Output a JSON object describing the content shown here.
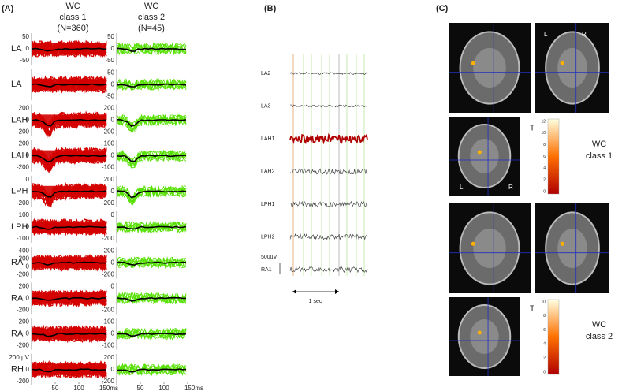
{
  "panel_a": {
    "label": "(A)",
    "columns": [
      [
        "WC",
        "class 1",
        "(N=360)"
      ],
      [
        "WC",
        "class 2",
        "(N=45)"
      ]
    ],
    "rows": [
      {
        "label": "LA",
        "ticks": [
          [
            "50",
            "0",
            "-50"
          ],
          [
            "50",
            "0",
            "-50"
          ]
        ]
      },
      {
        "label": "LA",
        "ticks": [
          [],
          [
            "50",
            "0",
            "-50"
          ]
        ]
      },
      {
        "label": "LAH",
        "ticks": [
          [
            "200",
            "0",
            "-200"
          ],
          [
            "200",
            "0",
            "-200"
          ]
        ]
      },
      {
        "label": "LAH",
        "ticks": [
          [
            "200",
            "0",
            "-200"
          ],
          [
            "100",
            "0",
            "-100"
          ]
        ]
      },
      {
        "label": "LPH",
        "ticks": [
          [
            "0",
            "-200"
          ],
          [
            "200",
            "0",
            "-200"
          ]
        ]
      },
      {
        "label": "LPH",
        "ticks": [
          [
            "100",
            "0",
            "-100"
          ],
          [
            "0",
            "-200"
          ]
        ]
      },
      {
        "label": "RA",
        "ticks": [
          [
            "400",
            "200",
            "0",
            "-200"
          ],
          [
            "200",
            "0",
            "-200"
          ]
        ]
      },
      {
        "label": "RA",
        "ticks": [
          [
            "200",
            "0",
            "-200"
          ],
          [
            "0",
            "-200"
          ]
        ]
      },
      {
        "label": "RA",
        "ticks": [
          [
            "200",
            "0",
            "-200"
          ],
          [
            "100",
            "0",
            "-100"
          ]
        ]
      },
      {
        "label": "RH",
        "ticks": [
          [
            "200 µV",
            "0",
            "-200"
          ],
          [
            "200",
            "0",
            "-200"
          ]
        ]
      }
    ],
    "xticks": [
      "50",
      "100",
      "150ms"
    ]
  },
  "panel_b": {
    "label": "(B)",
    "channels": [
      "LA2",
      "LA3",
      "LAH1",
      "LAH2",
      "LPH1",
      "LPH2",
      "RA1"
    ],
    "scale": "500uV",
    "time": "1 sec"
  },
  "panel_c": {
    "label": "(C)",
    "groups": [
      {
        "title": [
          "WC",
          "class 1"
        ],
        "unit": "T",
        "ticks": [
          "12",
          "10",
          "8",
          "6",
          "4",
          "2",
          "0"
        ],
        "left": "L",
        "right": "R"
      },
      {
        "title": [
          "WC",
          "class 2"
        ],
        "unit": "T",
        "ticks": [
          "10",
          "8",
          "6",
          "4",
          "2",
          "0"
        ]
      }
    ]
  }
}
